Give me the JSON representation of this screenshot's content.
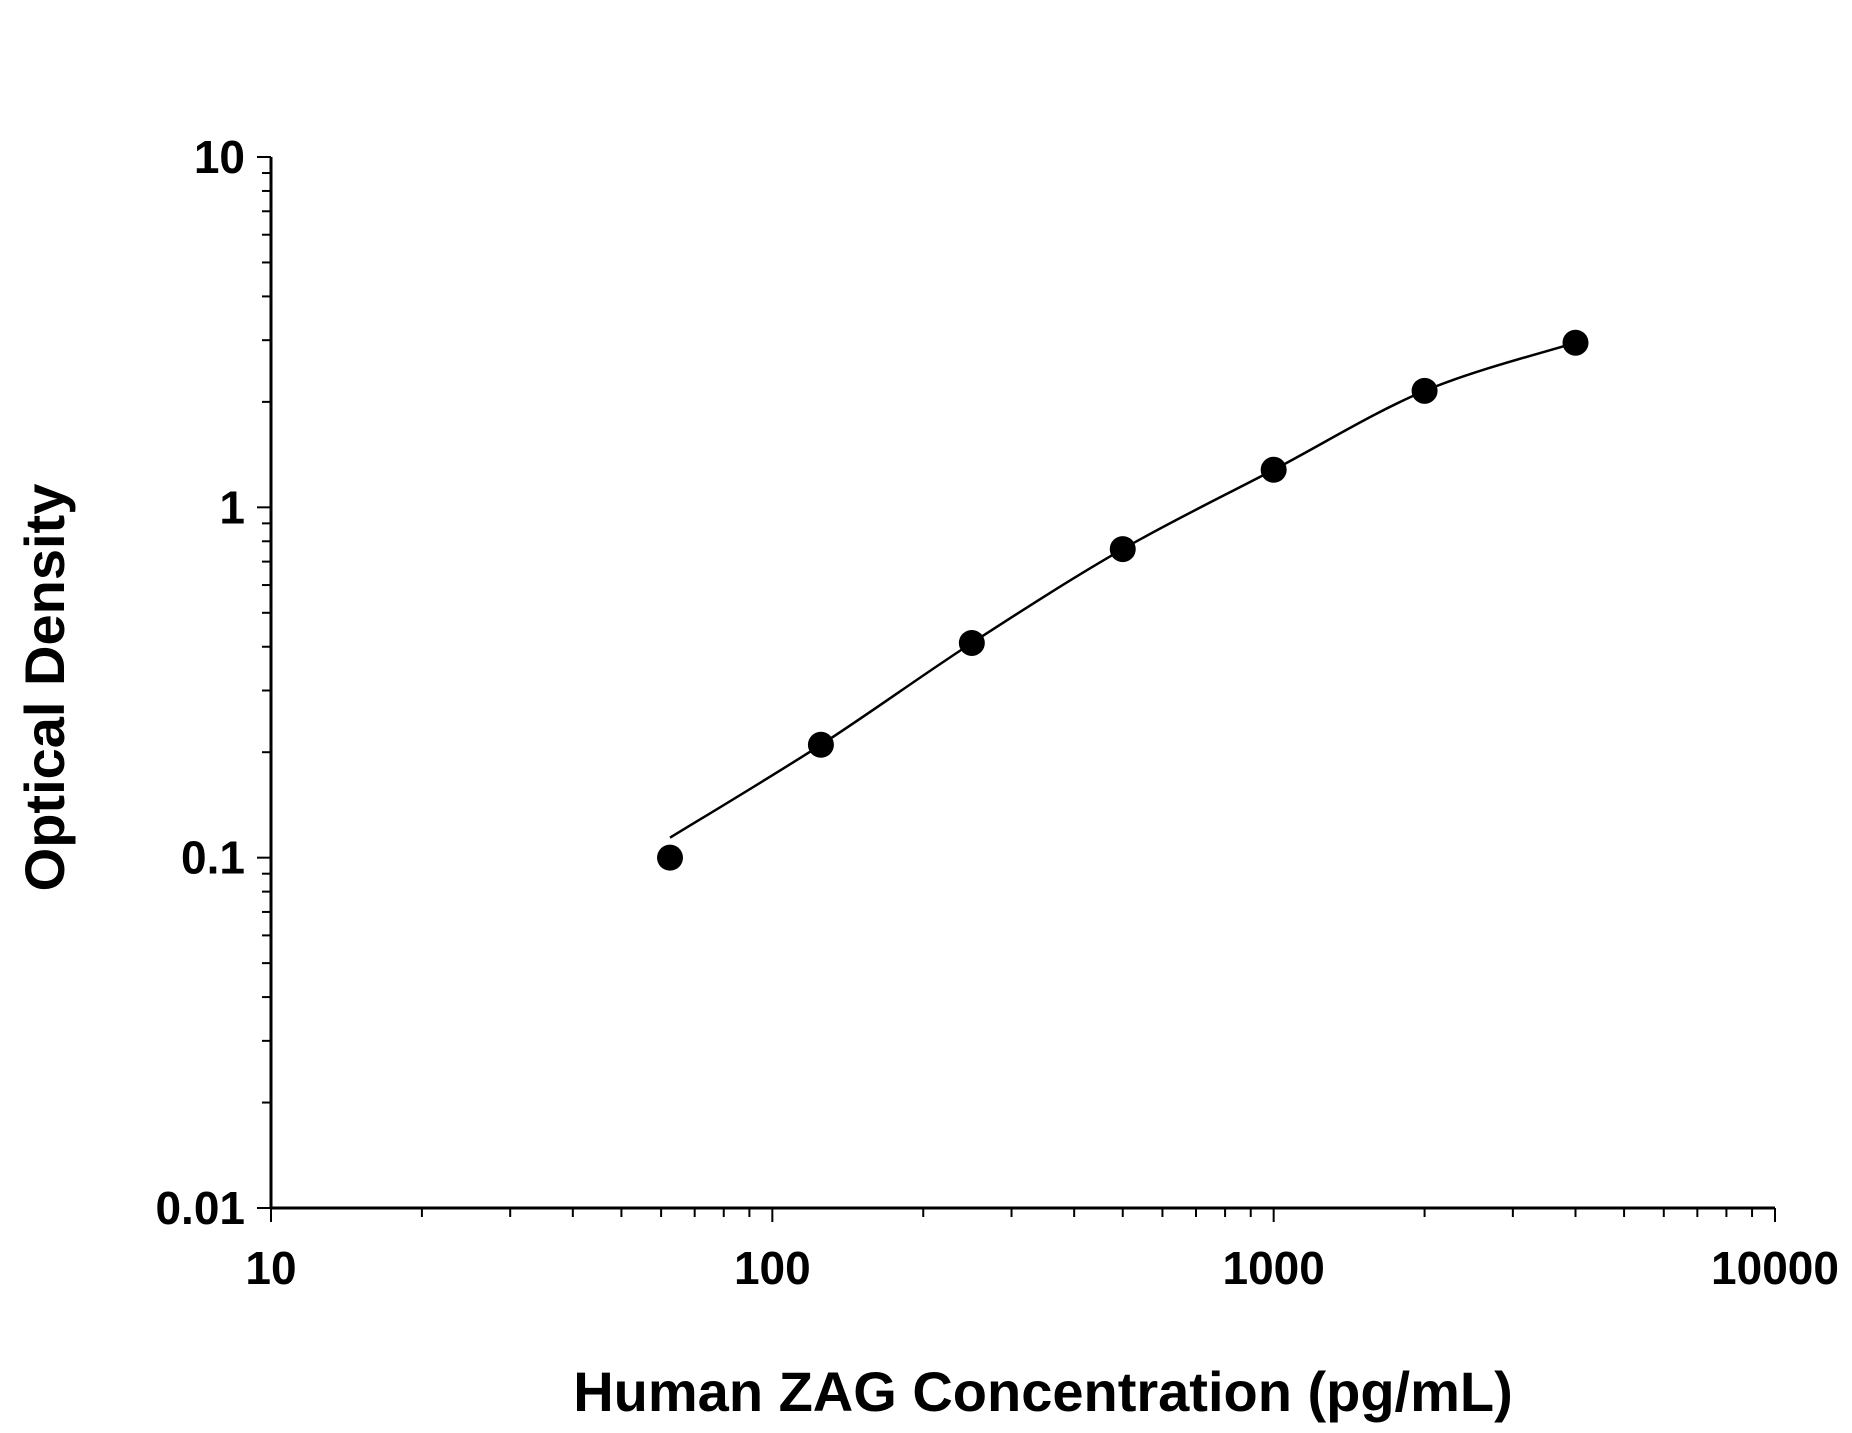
{
  "chart_data": {
    "type": "scatter",
    "title": "",
    "xlabel": "Human ZAG Concentration (pg/mL)",
    "ylabel": "Optical Density",
    "xscale": "log",
    "yscale": "log",
    "xlim": [
      10,
      10000
    ],
    "ylim": [
      0.01,
      10
    ],
    "x_tick_labels": [
      "10",
      "100",
      "1000",
      "10000"
    ],
    "y_tick_labels": [
      "0.01",
      "0.1",
      "1",
      "10"
    ],
    "grid": false,
    "legend": "none",
    "series": [
      {
        "x": [
          62.5,
          125,
          250,
          500,
          1000,
          2000,
          4000
        ],
        "y": [
          0.1,
          0.21,
          0.41,
          0.76,
          1.28,
          2.15,
          2.95
        ],
        "marker": "filled-circle",
        "color": "#000000",
        "fit_line": true
      }
    ]
  }
}
